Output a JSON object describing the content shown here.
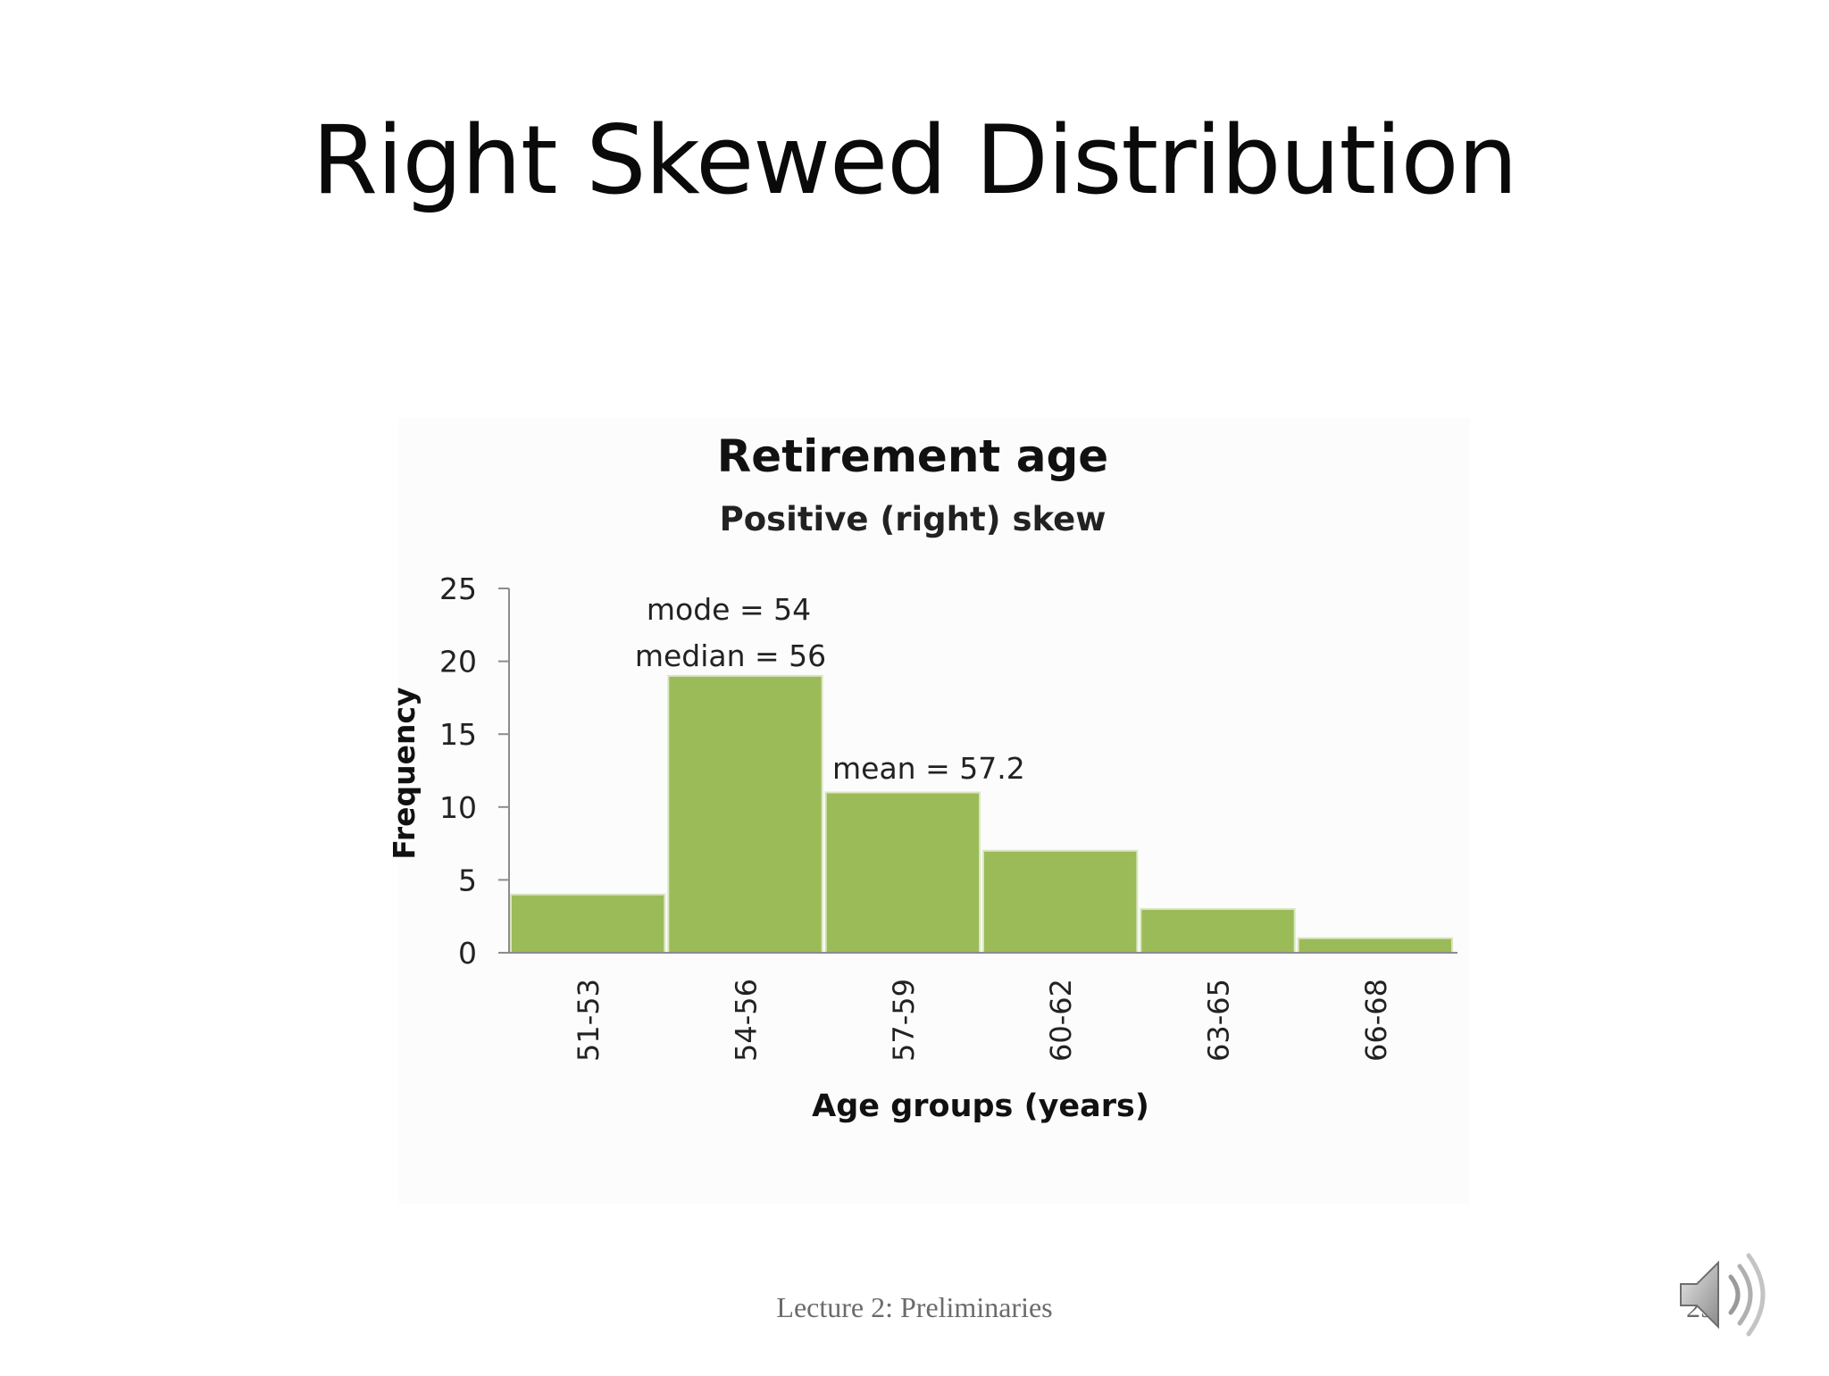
{
  "slide": {
    "title": "Right Skewed Distribution",
    "footer": "Lecture 2: Preliminaries",
    "page_number": "29",
    "icons": [
      "speaker-icon"
    ]
  },
  "chart_data": {
    "type": "bar",
    "title": "Retirement age",
    "subtitle": "Positive (right) skew",
    "xlabel": "Age groups (years)",
    "ylabel": "Frequency",
    "categories": [
      "51-53",
      "54-56",
      "57-59",
      "60-62",
      "63-65",
      "66-68"
    ],
    "values": [
      4,
      19,
      11,
      7,
      3,
      1
    ],
    "ylim": [
      0,
      25
    ],
    "yticks": [
      "0",
      "5",
      "10",
      "15",
      "20",
      "25"
    ],
    "grid": false,
    "bar_color": "#9bbb59",
    "annotations": [
      "mode = 54",
      "median = 56",
      "mean = 57.2"
    ]
  }
}
